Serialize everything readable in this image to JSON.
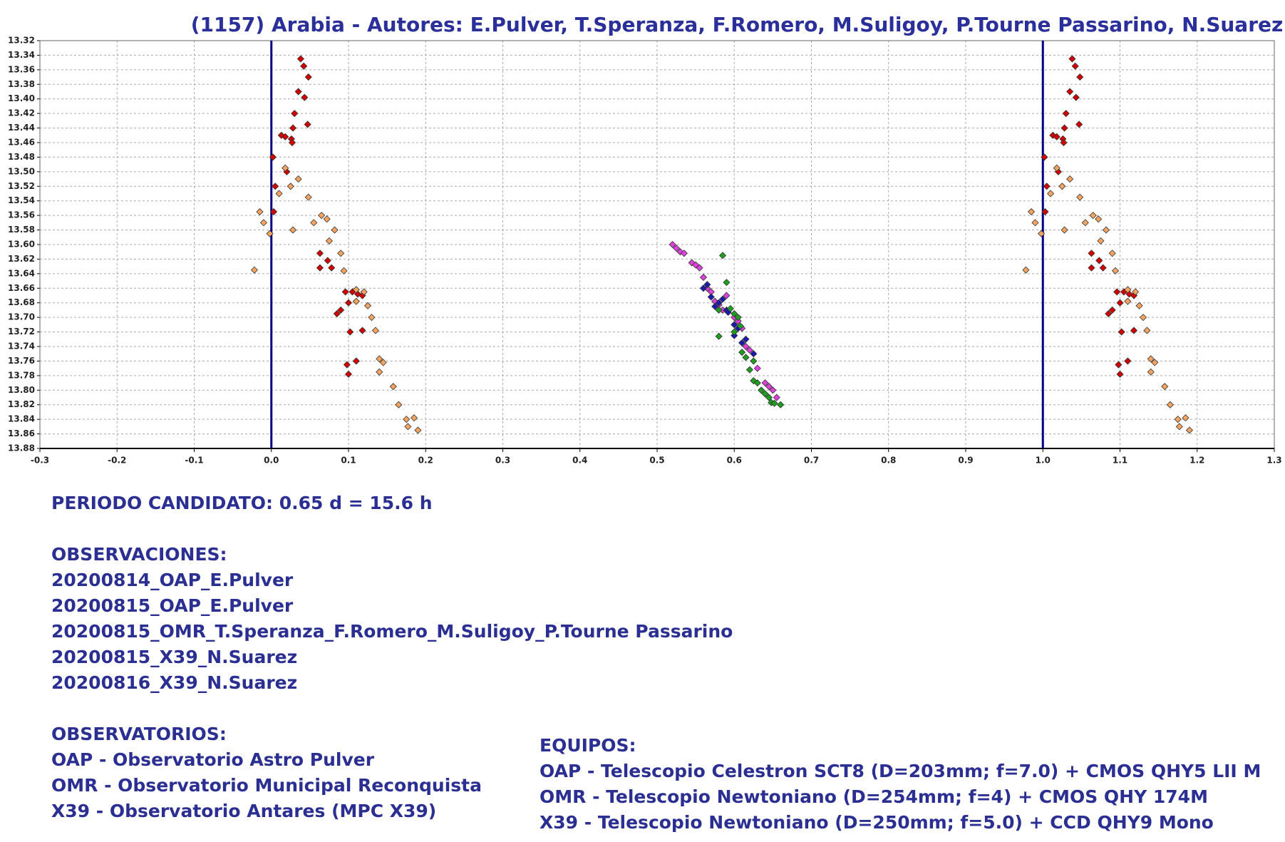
{
  "chart_data": {
    "type": "scatter",
    "title": "(1157) Arabia - Autores: E.Pulver, T.Speranza, F.Romero, M.Suligoy, P.Tourne Passarino, N.Suarez",
    "xlim": [
      -0.3,
      1.3
    ],
    "xticks": [
      -0.3,
      -0.2,
      -0.1,
      {
        "value": 0,
        "label": "0.0"
      },
      0.1,
      0.2,
      0.3,
      0.4,
      0.5,
      0.6,
      0.7,
      0.8,
      0.9,
      {
        "value": 1,
        "label": "1.0"
      },
      1.1,
      1.2,
      1.3
    ],
    "ylim": [
      13.32,
      13.88
    ],
    "y_inverted": true,
    "yticks": [
      13.32,
      13.34,
      13.36,
      13.38,
      {
        "value": 13.4,
        "label": "13.40"
      },
      13.42,
      13.44,
      13.46,
      13.48,
      {
        "value": 13.5,
        "label": "13.50"
      },
      13.52,
      13.54,
      13.56,
      13.58,
      {
        "value": 13.6,
        "label": "13.60"
      },
      13.62,
      13.64,
      13.66,
      13.68,
      {
        "value": 13.7,
        "label": "13.70"
      },
      13.72,
      13.74,
      13.76,
      13.78,
      {
        "value": 13.8,
        "label": "13.80"
      },
      13.82,
      13.84,
      13.86,
      13.88
    ],
    "grid": true,
    "vertical_lines": [
      0,
      1
    ],
    "vertical_line_color": "#000080",
    "series": [
      {
        "color": "#d40000",
        "x": [
          0.038,
          0.042,
          0.048,
          0.035,
          0.043,
          0.03,
          0.047,
          0.028,
          0.013,
          0.018,
          0.026,
          0.027,
          0.002,
          0.02,
          0.005,
          0.003,
          0.063,
          0.073,
          0.078,
          0.063,
          0.096,
          0.105,
          0.112,
          0.118,
          0.1,
          0.09,
          0.085,
          0.102,
          0.118,
          0.11,
          0.098,
          0.1,
          1.038,
          1.042,
          1.048,
          1.035,
          1.043,
          1.03,
          1.047,
          1.028,
          1.013,
          1.018,
          1.026,
          1.027,
          1.002,
          1.02,
          1.005,
          1.003,
          1.063,
          1.073,
          1.078,
          1.063,
          1.096,
          1.105,
          1.112,
          1.118,
          1.1,
          1.09,
          1.085,
          1.102,
          1.118,
          1.11,
          1.098,
          1.1
        ],
        "values": [
          13.345,
          13.355,
          13.37,
          13.39,
          13.398,
          13.42,
          13.435,
          13.44,
          13.45,
          13.452,
          13.455,
          13.46,
          13.48,
          13.5,
          13.52,
          13.555,
          13.612,
          13.622,
          13.632,
          13.632,
          13.665,
          13.665,
          13.668,
          13.67,
          13.68,
          13.69,
          13.695,
          13.72,
          13.718,
          13.76,
          13.765,
          13.778,
          13.345,
          13.355,
          13.37,
          13.39,
          13.398,
          13.42,
          13.435,
          13.44,
          13.45,
          13.452,
          13.455,
          13.46,
          13.48,
          13.5,
          13.52,
          13.555,
          13.612,
          13.622,
          13.632,
          13.632,
          13.665,
          13.665,
          13.668,
          13.67,
          13.68,
          13.69,
          13.695,
          13.72,
          13.718,
          13.76,
          13.765,
          13.778
        ]
      },
      {
        "color": "#f4a460",
        "x": [
          -0.015,
          -0.01,
          -0.002,
          -0.022,
          0.018,
          0.025,
          0.01,
          0.035,
          0.048,
          0.028,
          0.055,
          0.065,
          0.072,
          0.082,
          0.075,
          0.09,
          0.094,
          0.11,
          0.12,
          0.11,
          0.125,
          0.13,
          0.135,
          0.14,
          0.145,
          0.14,
          0.158,
          0.165,
          0.175,
          0.185,
          0.19,
          0.177,
          0.985,
          0.99,
          0.998,
          0.978,
          1.018,
          1.025,
          1.01,
          1.035,
          1.048,
          1.028,
          1.055,
          1.065,
          1.072,
          1.082,
          1.075,
          1.09,
          1.094,
          1.11,
          1.12,
          1.11,
          1.125,
          1.13,
          1.135,
          1.14,
          1.145,
          1.14,
          1.158,
          1.165,
          1.175,
          1.185,
          1.19,
          1.177
        ],
        "values": [
          13.555,
          13.57,
          13.585,
          13.635,
          13.495,
          13.52,
          13.53,
          13.51,
          13.535,
          13.58,
          13.57,
          13.56,
          13.565,
          13.58,
          13.595,
          13.612,
          13.636,
          13.662,
          13.665,
          13.678,
          13.684,
          13.7,
          13.718,
          13.757,
          13.762,
          13.775,
          13.795,
          13.82,
          13.84,
          13.838,
          13.855,
          13.85,
          13.555,
          13.57,
          13.585,
          13.635,
          13.495,
          13.52,
          13.53,
          13.51,
          13.535,
          13.58,
          13.57,
          13.56,
          13.565,
          13.58,
          13.595,
          13.612,
          13.636,
          13.662,
          13.665,
          13.678,
          13.684,
          13.7,
          13.718,
          13.757,
          13.762,
          13.775,
          13.795,
          13.82,
          13.84,
          13.838,
          13.855,
          13.85
        ]
      },
      {
        "color": "#e040e0",
        "x": [
          0.52,
          0.525,
          0.53,
          0.535,
          0.545,
          0.55,
          0.555,
          0.56,
          0.565,
          0.57,
          0.575,
          0.58,
          0.585,
          0.59,
          0.6,
          0.605,
          0.61,
          0.615,
          0.62,
          0.63,
          0.64,
          0.645,
          0.65,
          0.655
        ],
        "values": [
          13.6,
          13.605,
          13.61,
          13.612,
          13.625,
          13.628,
          13.632,
          13.645,
          13.66,
          13.665,
          13.678,
          13.683,
          13.69,
          13.67,
          13.7,
          13.705,
          13.715,
          13.74,
          13.745,
          13.77,
          13.79,
          13.795,
          13.8,
          13.81
        ]
      },
      {
        "color": "#1a1ab0",
        "x": [
          0.56,
          0.565,
          0.57,
          0.575,
          0.58,
          0.585,
          0.59,
          0.6,
          0.605,
          0.61,
          0.615,
          0.625,
          0.6,
          0.592
        ],
        "values": [
          13.66,
          13.655,
          13.672,
          13.685,
          13.68,
          13.675,
          13.69,
          13.71,
          13.715,
          13.735,
          13.73,
          13.75,
          13.725,
          13.693
        ]
      },
      {
        "color": "#1e9e1e",
        "x": [
          0.585,
          0.59,
          0.58,
          0.595,
          0.6,
          0.605,
          0.608,
          0.6,
          0.58,
          0.61,
          0.615,
          0.625,
          0.62,
          0.625,
          0.63,
          0.64,
          0.645,
          0.648,
          0.652,
          0.66,
          0.635
        ],
        "values": [
          13.615,
          13.652,
          13.69,
          13.688,
          13.695,
          13.7,
          13.712,
          13.72,
          13.726,
          13.748,
          13.755,
          13.76,
          13.772,
          13.787,
          13.79,
          13.805,
          13.81,
          13.817,
          13.818,
          13.82,
          13.8
        ]
      }
    ]
  },
  "notes": {
    "period": "PERIODO CANDIDATO: 0.65 d = 15.6 h",
    "observations": {
      "heading": "OBSERVACIONES:",
      "items": [
        "20200814_OAP_E.Pulver",
        "20200815_OAP_E.Pulver",
        "20200815_OMR_T.Speranza_F.Romero_M.Suligoy_P.Tourne Passarino",
        "20200815_X39_N.Suarez",
        "20200816_X39_N.Suarez"
      ]
    },
    "observatories": {
      "heading": "OBSERVATORIOS:",
      "items": [
        "OAP - Observatorio Astro Pulver",
        "OMR - Observatorio Municipal Reconquista",
        "X39 - Observatorio Antares (MPC X39)"
      ]
    },
    "equipment": {
      "heading": "EQUIPOS:",
      "items": [
        "OAP - Telescopio Celestron SCT8 (D=203mm; f=7.0) + CMOS QHY5 LII M",
        "OMR - Telescopio Newtoniano (D=254mm; f=4) + CMOS QHY 174M",
        "X39 - Telescopio Newtoniano (D=250mm; f=5.0) + CCD QHY9 Mono"
      ]
    }
  }
}
